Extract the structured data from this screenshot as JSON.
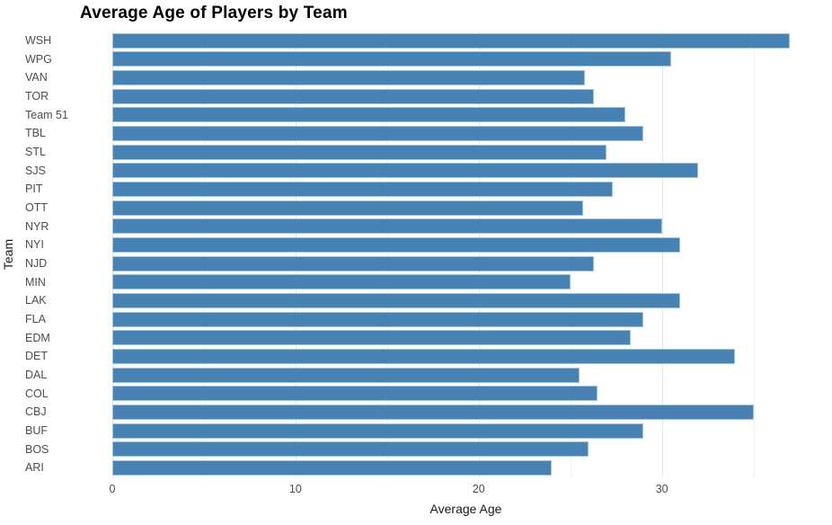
{
  "chart_data": {
    "type": "bar",
    "orientation": "horizontal",
    "title": "Average Age of Players by Team",
    "xlabel": "Average Age",
    "ylabel": "Team",
    "categories": [
      "WSH",
      "WPG",
      "VAN",
      "TOR",
      "Team 51",
      "TBL",
      "STL",
      "SJS",
      "PIT",
      "OTT",
      "NYR",
      "NYI",
      "NJD",
      "MIN",
      "LAK",
      "FLA",
      "EDM",
      "DET",
      "DAL",
      "COL",
      "CBJ",
      "BUF",
      "BOS",
      "ARI"
    ],
    "values": [
      37.0,
      30.5,
      25.8,
      26.3,
      28.0,
      29.0,
      27.0,
      32.0,
      27.3,
      25.7,
      30.0,
      31.0,
      26.3,
      25.0,
      31.0,
      29.0,
      28.3,
      34.0,
      25.5,
      26.5,
      35.0,
      29.0,
      26.0,
      24.0
    ],
    "xlim": [
      0,
      38.6
    ],
    "x_major_ticks": [
      0,
      10,
      20,
      30
    ],
    "x_minor_ticks": [
      5,
      15,
      25,
      35
    ],
    "grid": true,
    "legend": false,
    "colors": {
      "bar_fill": "#4682B4",
      "bar_border": "#9FC6DE",
      "grid_major": "#E3E3E3",
      "grid_minor": "#F1F1F1",
      "tick_label": "#4D4D4D",
      "axis_label": "#1A1A1A",
      "title": "#000000",
      "background": "#FFFFFF"
    }
  }
}
